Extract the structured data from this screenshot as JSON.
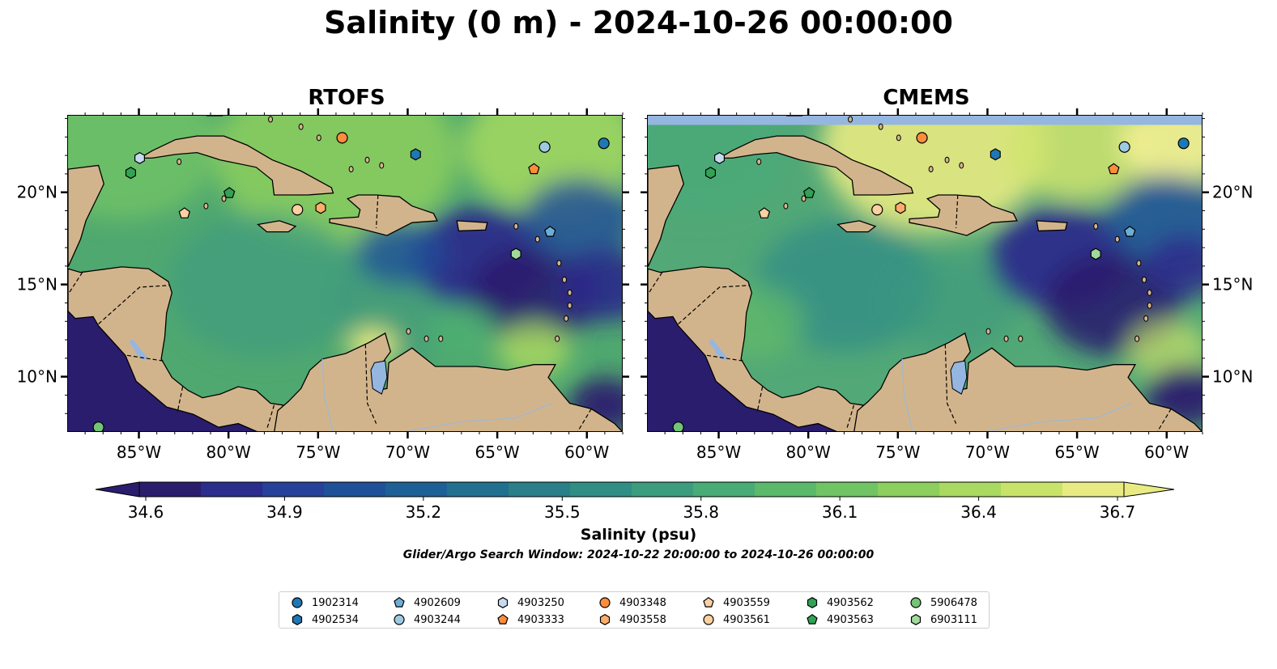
{
  "title": "Salinity (0 m) - 2024-10-26 00:00:00",
  "panels": [
    {
      "title": "RTOFS",
      "model": "rtofs"
    },
    {
      "title": "CMEMS",
      "model": "cmems"
    }
  ],
  "lon_ticks": [
    "85°W",
    "80°W",
    "75°W",
    "70°W",
    "65°W",
    "60°W"
  ],
  "lat_ticks": [
    "20°N",
    "15°N",
    "10°N"
  ],
  "colorbar": {
    "label": "Salinity (psu)",
    "min": 34.6,
    "max": 36.7,
    "ticks": [
      "34.6",
      "34.9",
      "35.2",
      "35.5",
      "35.8",
      "36.1",
      "36.4",
      "36.7"
    ],
    "colors": [
      "#2a1d6e",
      "#2b2c8c",
      "#27409a",
      "#1f5199",
      "#1d6095",
      "#22708f",
      "#2a7f89",
      "#318e84",
      "#3b9c7e",
      "#49ab76",
      "#5bb96c",
      "#71c463",
      "#8ccf5e",
      "#a9d960",
      "#c8e36a",
      "#e8eb82"
    ]
  },
  "search_window": "Glider/Argo Search Window: 2024-10-22 20:00:00 to 2024-10-26 00:00:00",
  "colors": {
    "land": "#d2b48c",
    "lake": "#95b6e0",
    "river": "#a5b8c8"
  },
  "legend": [
    {
      "id": "1902314",
      "marker": "circle",
      "color": "#1f77b4"
    },
    {
      "id": "4902534",
      "marker": "hexagon",
      "color": "#1f77b4"
    },
    {
      "id": "4902609",
      "marker": "pentagon",
      "color": "#6baed6"
    },
    {
      "id": "4903244",
      "marker": "circle",
      "color": "#9ecae1"
    },
    {
      "id": "4903250",
      "marker": "hexagon",
      "color": "#c6dbef"
    },
    {
      "id": "4903333",
      "marker": "pentagon",
      "color": "#fd8d3c"
    },
    {
      "id": "4903348",
      "marker": "circle",
      "color": "#fd8d3c"
    },
    {
      "id": "4903558",
      "marker": "hexagon",
      "color": "#fdae6b"
    },
    {
      "id": "4903559",
      "marker": "pentagon",
      "color": "#fdd0a2"
    },
    {
      "id": "4903561",
      "marker": "circle",
      "color": "#fdd0a2"
    },
    {
      "id": "4903562",
      "marker": "hexagon",
      "color": "#31a354"
    },
    {
      "id": "4903563",
      "marker": "pentagon",
      "color": "#31a354"
    },
    {
      "id": "5906478",
      "marker": "circle",
      "color": "#74c476"
    },
    {
      "id": "6903111",
      "marker": "hexagon",
      "color": "#a1d99b"
    }
  ],
  "floats": [
    {
      "id": "1902314",
      "lon": -59.1,
      "lat": 22.7
    },
    {
      "id": "4902534",
      "lon": -69.6,
      "lat": 22.1
    },
    {
      "id": "4902609",
      "lon": -62.1,
      "lat": 17.9
    },
    {
      "id": "4903244",
      "lon": -62.4,
      "lat": 22.5
    },
    {
      "id": "4903250",
      "lon": -85.0,
      "lat": 21.9
    },
    {
      "id": "4903333",
      "lon": -63.0,
      "lat": 21.3
    },
    {
      "id": "4903348",
      "lon": -73.7,
      "lat": 23.0
    },
    {
      "id": "4903558",
      "lon": -74.9,
      "lat": 19.2
    },
    {
      "id": "4903559",
      "lon": -82.5,
      "lat": 18.9
    },
    {
      "id": "4903561",
      "lon": -76.2,
      "lat": 19.1
    },
    {
      "id": "4903562",
      "lon": -85.5,
      "lat": 21.1
    },
    {
      "id": "4903563",
      "lon": -80.0,
      "lat": 20.0
    },
    {
      "id": "5906478",
      "lon": -87.3,
      "lat": 7.3
    },
    {
      "id": "6903111",
      "lon": -64.0,
      "lat": 16.7
    }
  ]
}
